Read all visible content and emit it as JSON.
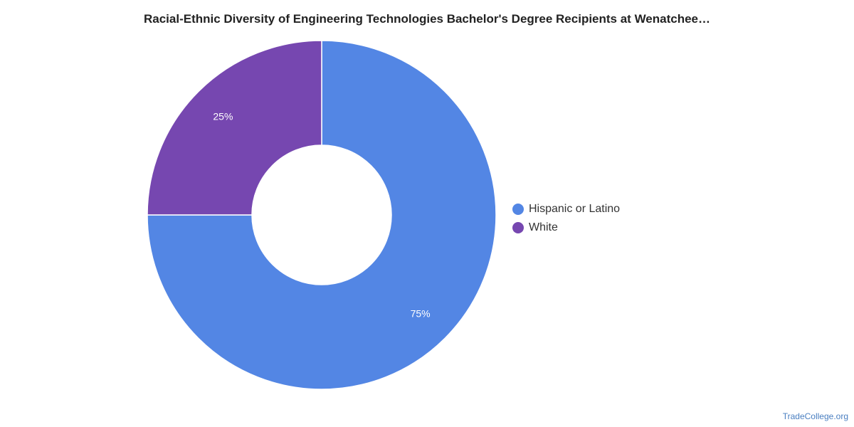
{
  "chart_data": {
    "type": "pie",
    "variant": "donut",
    "title": "Racial-Ethnic Diversity of Engineering Technologies Bachelor's Degree Recipients at Wenatchee…",
    "categories": [
      "Hispanic or Latino",
      "White"
    ],
    "values": [
      75,
      25
    ],
    "labels": [
      "75%",
      "25%"
    ],
    "colors": [
      "#5386e4",
      "#7647b0"
    ],
    "legend_position": "right"
  },
  "footer": {
    "credit": "TradeCollege.org"
  }
}
